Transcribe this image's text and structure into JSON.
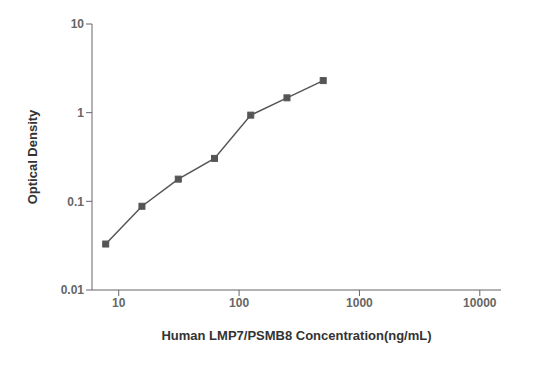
{
  "chart_data": {
    "type": "line",
    "x": [
      7.8,
      15.6,
      31.25,
      62.5,
      125,
      250,
      500
    ],
    "values": [
      0.033,
      0.088,
      0.178,
      0.305,
      0.938,
      1.47,
      2.3
    ],
    "x_label": "Human LMP7/PSMB8 Concentration(ng/mL)",
    "y_label": "Optical Density",
    "xlim": [
      6,
      15000
    ],
    "ylim": [
      0.01,
      10
    ],
    "xticks": [
      10,
      100,
      1000,
      10000
    ],
    "yticks": [
      0.01,
      0.1,
      1,
      10
    ],
    "log": true,
    "color": "#555555",
    "marker": "square",
    "grid": false
  }
}
